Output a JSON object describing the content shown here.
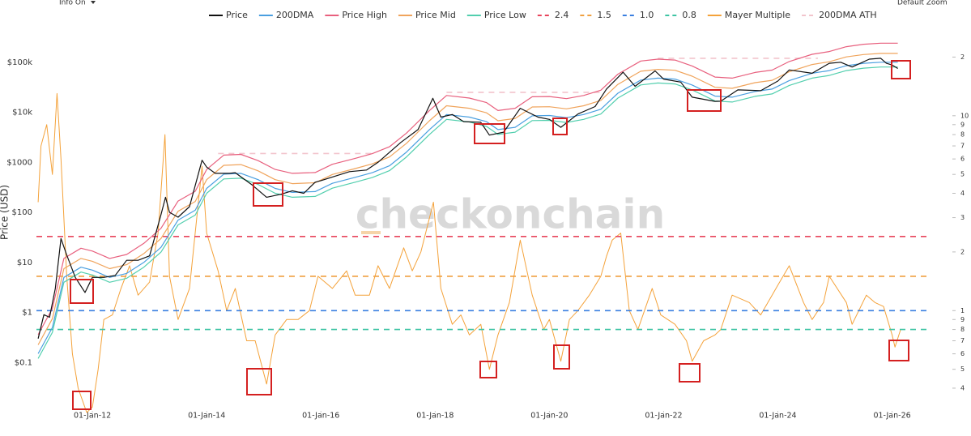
{
  "chart_data": {
    "type": "line",
    "controls": {
      "info": "Info On",
      "zoom": "Default Zoom"
    },
    "watermark": "checkonchain",
    "y_label": "Price (USD)",
    "xlim": [
      2011.02,
      2026.63
    ],
    "xticks": [
      {
        "value": 2012,
        "label": "01-Jan-12"
      },
      {
        "value": 2014,
        "label": "01-Jan-14"
      },
      {
        "value": 2016,
        "label": "01-Jan-16"
      },
      {
        "value": 2018,
        "label": "01-Jan-18"
      },
      {
        "value": 2020,
        "label": "01-Jan-20"
      },
      {
        "value": 2022,
        "label": "01-Jan-22"
      },
      {
        "value": 2024,
        "label": "01-Jan-24"
      },
      {
        "value": 2026,
        "label": "01-Jan-26"
      }
    ],
    "ylog": true,
    "ylim": [
      0.01,
      1000000
    ],
    "yticks": [
      {
        "value": 0.1,
        "label": "$0.1"
      },
      {
        "value": 1,
        "label": "$1"
      },
      {
        "value": 10,
        "label": "$10"
      },
      {
        "value": 100,
        "label": "$100"
      },
      {
        "value": 1000,
        "label": "$1000"
      },
      {
        "value": 10000,
        "label": "$10k"
      },
      {
        "value": 100000,
        "label": "$100k"
      }
    ],
    "y2log": true,
    "y2lim": [
      0.3,
      34
    ],
    "y2ticks": [
      {
        "value": 0.4,
        "label": "4"
      },
      {
        "value": 0.5,
        "label": "5"
      },
      {
        "value": 0.6,
        "label": "6"
      },
      {
        "value": 0.7,
        "label": "7"
      },
      {
        "value": 0.8,
        "label": "8"
      },
      {
        "value": 0.9,
        "label": "9"
      },
      1,
      2,
      3,
      4,
      5,
      6,
      7,
      8,
      9,
      10,
      {
        "value": 20,
        "label": "2"
      }
    ],
    "grid": false,
    "legend": "top",
    "series": [
      {
        "name": "Price",
        "color": "#111111",
        "x": [
          2011.05,
          2011.15,
          2011.25,
          2011.35,
          2011.45,
          2011.55,
          2011.7,
          2011.87,
          2012.0,
          2012.2,
          2012.4,
          2012.6,
          2012.8,
          2013.0,
          2013.2,
          2013.28,
          2013.35,
          2013.5,
          2013.7,
          2013.92,
          2014.0,
          2014.15,
          2014.4,
          2014.5,
          2014.8,
          2015.05,
          2015.3,
          2015.5,
          2015.7,
          2015.9,
          2016.0,
          2016.5,
          2016.8,
          2017.0,
          2017.4,
          2017.7,
          2017.96,
          2018.1,
          2018.3,
          2018.5,
          2018.8,
          2018.95,
          2019.2,
          2019.49,
          2019.8,
          2020.0,
          2020.2,
          2020.5,
          2020.8,
          2021.0,
          2021.29,
          2021.5,
          2021.85,
          2022.0,
          2022.3,
          2022.5,
          2022.9,
          2023.0,
          2023.3,
          2023.7,
          2024.0,
          2024.2,
          2024.6,
          2024.9,
          2025.1,
          2025.3,
          2025.6,
          2025.8,
          2025.9,
          2026.0,
          2026.1
        ],
        "values": [
          0.3,
          0.9,
          0.8,
          3,
          30,
          14,
          5,
          2.5,
          5,
          5,
          5.5,
          11,
          11,
          13.5,
          90,
          200,
          100,
          80,
          130,
          1100,
          800,
          600,
          600,
          620,
          350,
          200,
          230,
          270,
          240,
          400,
          430,
          650,
          700,
          1000,
          2500,
          4500,
          19000,
          8000,
          9000,
          6500,
          6300,
          3500,
          4000,
          12000,
          8000,
          7200,
          5000,
          9200,
          13000,
          29000,
          63000,
          33000,
          67000,
          46000,
          40000,
          20000,
          16500,
          16600,
          28000,
          27000,
          42000,
          70000,
          60000,
          95000,
          100000,
          80000,
          115000,
          120000,
          95000,
          88000,
          75000
        ]
      },
      {
        "name": "200DMA",
        "color": "#4a9fe0",
        "x": [
          2011.05,
          2011.3,
          2011.5,
          2011.8,
          2012.0,
          2012.3,
          2012.6,
          2012.9,
          2013.2,
          2013.5,
          2013.8,
          2014.0,
          2014.3,
          2014.6,
          2014.9,
          2015.2,
          2015.5,
          2015.9,
          2016.2,
          2016.6,
          2016.9,
          2017.2,
          2017.5,
          2017.9,
          2018.2,
          2018.6,
          2018.9,
          2019.1,
          2019.4,
          2019.7,
          2020.0,
          2020.3,
          2020.6,
          2020.9,
          2021.2,
          2021.6,
          2021.9,
          2022.2,
          2022.5,
          2022.9,
          2023.2,
          2023.6,
          2023.9,
          2024.2,
          2024.6,
          2024.9,
          2025.2,
          2025.5,
          2025.8,
          2026.1
        ],
        "values": [
          0.15,
          0.5,
          5,
          8,
          7,
          5,
          6,
          10,
          20,
          70,
          110,
          300,
          580,
          600,
          450,
          300,
          250,
          260,
          380,
          500,
          620,
          850,
          1600,
          4500,
          9000,
          8000,
          6500,
          4500,
          5000,
          8500,
          8600,
          7800,
          9000,
          11500,
          24000,
          44000,
          48000,
          46000,
          35000,
          21000,
          20000,
          26000,
          29000,
          43000,
          60000,
          68000,
          85000,
          95000,
          100000,
          100000
        ]
      },
      {
        "name": "Price High",
        "color": "#e8607e",
        "x": [
          2011.05,
          2011.3,
          2011.5,
          2011.8,
          2012.0,
          2012.3,
          2012.6,
          2012.9,
          2013.2,
          2013.5,
          2013.8,
          2014.0,
          2014.3,
          2014.6,
          2014.9,
          2015.2,
          2015.5,
          2015.9,
          2016.2,
          2016.6,
          2016.9,
          2017.2,
          2017.5,
          2017.9,
          2018.2,
          2018.6,
          2018.9,
          2019.1,
          2019.4,
          2019.7,
          2020.0,
          2020.3,
          2020.6,
          2020.9,
          2021.2,
          2021.6,
          2021.9,
          2022.2,
          2022.5,
          2022.9,
          2023.2,
          2023.6,
          2023.9,
          2024.2,
          2024.6,
          2024.9,
          2025.2,
          2025.5,
          2025.8,
          2026.1
        ],
        "values": [
          0.36,
          1.2,
          12,
          19.2,
          16.8,
          12,
          14.4,
          24,
          48,
          168,
          264,
          720,
          1392,
          1440,
          1080,
          720,
          600,
          624,
          912,
          1200,
          1488,
          2040,
          3840,
          10800,
          21600,
          19200,
          15600,
          10800,
          12000,
          20400,
          20640,
          18720,
          21600,
          27600,
          57600,
          105600,
          115200,
          110400,
          84000,
          50400,
          48000,
          62400,
          69600,
          103200,
          144000,
          163200,
          204000,
          228000,
          240000,
          240000
        ]
      },
      {
        "name": "Price Mid",
        "color": "#f0a45c",
        "x": [
          2011.05,
          2011.3,
          2011.5,
          2011.8,
          2012.0,
          2012.3,
          2012.6,
          2012.9,
          2013.2,
          2013.5,
          2013.8,
          2014.0,
          2014.3,
          2014.6,
          2014.9,
          2015.2,
          2015.5,
          2015.9,
          2016.2,
          2016.6,
          2016.9,
          2017.2,
          2017.5,
          2017.9,
          2018.2,
          2018.6,
          2018.9,
          2019.1,
          2019.4,
          2019.7,
          2020.0,
          2020.3,
          2020.6,
          2020.9,
          2021.2,
          2021.6,
          2021.9,
          2022.2,
          2022.5,
          2022.9,
          2023.2,
          2023.6,
          2023.9,
          2024.2,
          2024.6,
          2024.9,
          2025.2,
          2025.5,
          2025.8,
          2026.1
        ],
        "values": [
          0.225,
          0.75,
          7.5,
          12,
          10.5,
          7.5,
          9,
          15,
          30,
          105,
          165,
          450,
          870,
          900,
          675,
          450,
          375,
          390,
          570,
          750,
          930,
          1275,
          2400,
          6750,
          13500,
          12000,
          9750,
          6750,
          7500,
          12750,
          12900,
          11700,
          13500,
          17250,
          36000,
          66000,
          72000,
          69000,
          52500,
          31500,
          30000,
          39000,
          43500,
          64500,
          90000,
          102000,
          127500,
          142500,
          150000,
          150000
        ]
      },
      {
        "name": "Price Low",
        "color": "#52cfae",
        "x": [
          2011.05,
          2011.3,
          2011.5,
          2011.8,
          2012.0,
          2012.3,
          2012.6,
          2012.9,
          2013.2,
          2013.5,
          2013.8,
          2014.0,
          2014.3,
          2014.6,
          2014.9,
          2015.2,
          2015.5,
          2015.9,
          2016.2,
          2016.6,
          2016.9,
          2017.2,
          2017.5,
          2017.9,
          2018.2,
          2018.6,
          2018.9,
          2019.1,
          2019.4,
          2019.7,
          2020.0,
          2020.3,
          2020.6,
          2020.9,
          2021.2,
          2021.6,
          2021.9,
          2022.2,
          2022.5,
          2022.9,
          2023.2,
          2023.6,
          2023.9,
          2024.2,
          2024.6,
          2024.9,
          2025.2,
          2025.5,
          2025.8,
          2026.1
        ],
        "values": [
          0.12,
          0.4,
          4,
          6.4,
          5.6,
          4,
          4.8,
          8,
          16,
          56,
          88,
          240,
          464,
          480,
          360,
          240,
          200,
          208,
          304,
          400,
          496,
          680,
          1280,
          3600,
          7200,
          6400,
          5200,
          3600,
          4000,
          6800,
          6880,
          6240,
          7200,
          9200,
          19200,
          35200,
          38400,
          36800,
          28000,
          16800,
          16000,
          20800,
          23200,
          34400,
          48000,
          54400,
          68000,
          76000,
          80000,
          80000
        ]
      },
      {
        "name": "2.4",
        "color": "#e8455c",
        "dash": true,
        "axis": "y2",
        "value": 2.4
      },
      {
        "name": "1.5",
        "color": "#f0a040",
        "dash": true,
        "axis": "y2",
        "value": 1.5
      },
      {
        "name": "1.0",
        "color": "#3a7fe0",
        "dash": true,
        "axis": "y2",
        "value": 1.0
      },
      {
        "name": "0.8",
        "color": "#3fc4a4",
        "dash": true,
        "axis": "y2",
        "value": 0.8
      },
      {
        "name": "Mayer Multiple",
        "color": "#f4a23a",
        "axis": "y2",
        "x": [
          2011.05,
          2011.1,
          2011.2,
          2011.3,
          2011.38,
          2011.45,
          2011.55,
          2011.65,
          2011.75,
          2011.9,
          2012.0,
          2012.1,
          2012.2,
          2012.35,
          2012.5,
          2012.65,
          2012.8,
          2013.0,
          2013.15,
          2013.27,
          2013.35,
          2013.5,
          2013.7,
          2013.92,
          2014.0,
          2014.2,
          2014.35,
          2014.5,
          2014.7,
          2014.85,
          2015.05,
          2015.2,
          2015.4,
          2015.6,
          2015.8,
          2015.95,
          2016.2,
          2016.45,
          2016.6,
          2016.85,
          2017.0,
          2017.2,
          2017.45,
          2017.6,
          2017.75,
          2017.97,
          2018.1,
          2018.3,
          2018.45,
          2018.6,
          2018.8,
          2018.95,
          2019.1,
          2019.3,
          2019.49,
          2019.7,
          2019.9,
          2020.0,
          2020.2,
          2020.35,
          2020.5,
          2020.7,
          2020.9,
          2021.0,
          2021.1,
          2021.25,
          2021.4,
          2021.55,
          2021.8,
          2021.95,
          2022.2,
          2022.4,
          2022.5,
          2022.7,
          2022.9,
          2023.0,
          2023.2,
          2023.5,
          2023.7,
          2023.9,
          2024.0,
          2024.2,
          2024.45,
          2024.6,
          2024.8,
          2024.9,
          2025.2,
          2025.3,
          2025.55,
          2025.7,
          2025.85,
          2026.0,
          2026.05,
          2026.15
        ],
        "values": [
          3.6,
          7,
          9,
          5,
          13,
          6,
          1.5,
          0.6,
          0.4,
          0.3,
          0.32,
          0.5,
          0.9,
          0.95,
          1.3,
          1.7,
          1.2,
          1.4,
          2.5,
          8,
          1.5,
          0.9,
          1.3,
          5.5,
          2.5,
          1.6,
          1.0,
          1.3,
          0.7,
          0.7,
          0.42,
          0.75,
          0.9,
          0.9,
          1.0,
          1.5,
          1.3,
          1.6,
          1.2,
          1.2,
          1.7,
          1.3,
          2.1,
          1.6,
          2.0,
          3.6,
          1.3,
          0.85,
          0.95,
          0.75,
          0.85,
          0.5,
          0.75,
          1.1,
          2.3,
          1.2,
          0.8,
          0.9,
          0.55,
          0.9,
          1.0,
          1.2,
          1.5,
          1.9,
          2.3,
          2.5,
          1.0,
          0.8,
          1.3,
          0.95,
          0.85,
          0.7,
          0.55,
          0.7,
          0.75,
          0.8,
          1.2,
          1.1,
          0.95,
          1.2,
          1.35,
          1.7,
          1.1,
          0.9,
          1.1,
          1.5,
          1.1,
          0.85,
          1.2,
          1.1,
          1.05,
          0.75,
          0.65,
          0.8
        ]
      },
      {
        "name": "200DMA ATH",
        "color": "#f2c4cc",
        "dash": true,
        "x": [
          2014.2,
          2016.9,
          2017.0,
          2018.2,
          2020.95,
          2021.0,
          2021.9,
          2024.7
        ],
        "values": [
          1500,
          1500,
          null,
          25000,
          25000,
          null,
          120000,
          120000
        ]
      }
    ]
  }
}
